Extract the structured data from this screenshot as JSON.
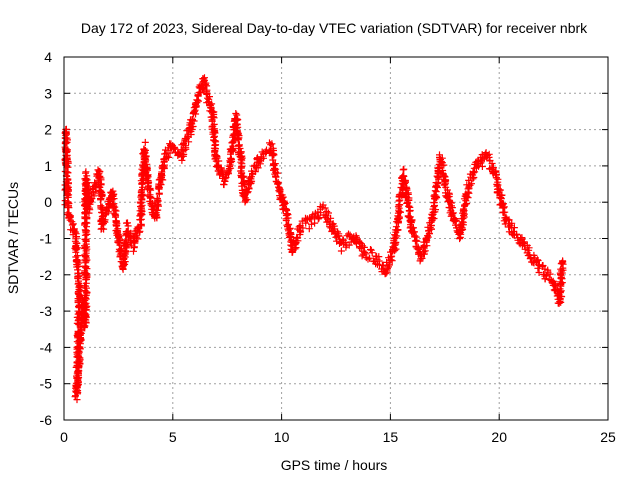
{
  "chart_data": {
    "type": "scatter",
    "title": "Day 172 of 2023, Sidereal Day-to-day VTEC variation (SDTVAR) for receiver nbrk",
    "xlabel": "GPS time / hours",
    "ylabel": "SDTVAR / TECUs",
    "xlim": [
      0,
      25
    ],
    "ylim": [
      -6,
      4
    ],
    "xticks": [
      "0",
      "5",
      "10",
      "15",
      "20",
      "25"
    ],
    "yticks": [
      "-6",
      "-5",
      "-4",
      "-3",
      "-2",
      "-1",
      "0",
      "1",
      "2",
      "3",
      "4"
    ],
    "grid": true,
    "marker": "plus",
    "series_color": "#ff0000",
    "series": [
      {
        "name": "nbrk",
        "anchors": [
          [
            0.0,
            -0.2
          ],
          [
            0.05,
            2.0
          ],
          [
            0.1,
            1.9
          ],
          [
            0.2,
            -0.3
          ],
          [
            0.5,
            -0.9
          ],
          [
            0.55,
            -1.1
          ],
          [
            0.6,
            -1.5
          ],
          [
            0.65,
            -2.0
          ],
          [
            0.7,
            -2.3
          ],
          [
            0.6,
            -5.1
          ],
          [
            0.55,
            -5.3
          ],
          [
            0.9,
            -2.8
          ],
          [
            0.95,
            -3.4
          ],
          [
            1.0,
            -3.0
          ],
          [
            1.0,
            0.7
          ],
          [
            1.05,
            0.4
          ],
          [
            1.1,
            -0.2
          ],
          [
            1.6,
            0.8
          ],
          [
            1.7,
            0.4
          ],
          [
            1.75,
            -0.7
          ],
          [
            2.0,
            -0.2
          ],
          [
            2.2,
            0.3
          ],
          [
            2.4,
            -0.6
          ],
          [
            2.6,
            -1.4
          ],
          [
            2.75,
            -1.8
          ],
          [
            2.9,
            -0.7
          ],
          [
            3.2,
            -1.2
          ],
          [
            3.5,
            -0.6
          ],
          [
            3.7,
            1.5
          ],
          [
            3.9,
            0.3
          ],
          [
            4.2,
            -0.4
          ],
          [
            4.6,
            1.2
          ],
          [
            5.0,
            1.6
          ],
          [
            5.4,
            1.3
          ],
          [
            5.8,
            2.0
          ],
          [
            6.1,
            2.8
          ],
          [
            6.4,
            3.3
          ],
          [
            6.8,
            2.5
          ],
          [
            7.0,
            1.2
          ],
          [
            7.3,
            0.6
          ],
          [
            7.6,
            0.9
          ],
          [
            7.9,
            2.4
          ],
          [
            8.3,
            0.1
          ],
          [
            8.7,
            0.9
          ],
          [
            9.1,
            1.3
          ],
          [
            9.5,
            1.5
          ],
          [
            9.8,
            0.6
          ],
          [
            10.2,
            -0.3
          ],
          [
            10.5,
            -1.3
          ],
          [
            10.9,
            -0.7
          ],
          [
            11.4,
            -0.5
          ],
          [
            11.9,
            -0.2
          ],
          [
            12.3,
            -0.6
          ],
          [
            12.8,
            -1.2
          ],
          [
            13.3,
            -0.9
          ],
          [
            13.8,
            -1.4
          ],
          [
            14.3,
            -1.5
          ],
          [
            14.8,
            -1.9
          ],
          [
            15.2,
            -1.2
          ],
          [
            15.6,
            0.8
          ],
          [
            16.0,
            -0.8
          ],
          [
            16.4,
            -1.5
          ],
          [
            16.9,
            -0.6
          ],
          [
            17.3,
            1.2
          ],
          [
            17.8,
            -0.3
          ],
          [
            18.2,
            -0.9
          ],
          [
            18.6,
            0.5
          ],
          [
            19.0,
            1.0
          ],
          [
            19.4,
            1.3
          ],
          [
            19.8,
            0.8
          ],
          [
            20.2,
            -0.3
          ],
          [
            20.6,
            -0.8
          ],
          [
            21.0,
            -1.1
          ],
          [
            21.5,
            -1.5
          ],
          [
            22.0,
            -1.9
          ],
          [
            22.5,
            -2.2
          ],
          [
            22.8,
            -2.7
          ],
          [
            22.9,
            -1.6
          ]
        ]
      }
    ]
  }
}
